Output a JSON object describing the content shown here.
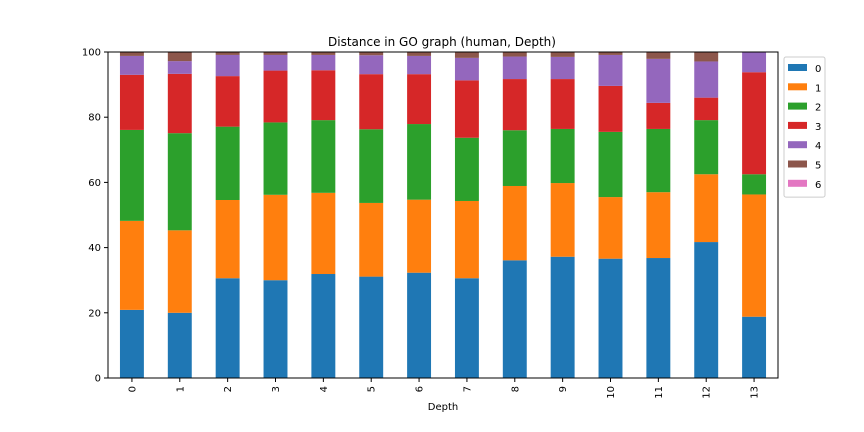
{
  "chart_data": {
    "type": "bar",
    "stacked": true,
    "title": "Distance in GO graph (human, Depth)",
    "xlabel": "Depth",
    "ylabel": "",
    "ylim": [
      0,
      100
    ],
    "yticks": [
      0,
      20,
      40,
      60,
      80,
      100
    ],
    "categories": [
      "0",
      "1",
      "2",
      "3",
      "4",
      "5",
      "6",
      "7",
      "8",
      "9",
      "10",
      "11",
      "12",
      "13"
    ],
    "legend_position": "upper-right-outside",
    "series": [
      {
        "name": "0",
        "color": "#1f77b4",
        "values": [
          20.9,
          20.0,
          30.6,
          30.0,
          31.9,
          31.1,
          32.3,
          30.6,
          36.1,
          37.2,
          36.6,
          36.8,
          41.7,
          18.8
        ]
      },
      {
        "name": "1",
        "color": "#ff7f0e",
        "values": [
          27.3,
          25.3,
          24.0,
          26.2,
          24.9,
          22.6,
          22.4,
          23.7,
          22.8,
          22.6,
          18.9,
          20.2,
          20.8,
          37.5
        ]
      },
      {
        "name": "2",
        "color": "#2ca02c",
        "values": [
          27.9,
          29.8,
          22.5,
          22.2,
          22.3,
          22.6,
          23.2,
          19.4,
          17.1,
          16.6,
          20.0,
          19.4,
          16.6,
          6.2
        ]
      },
      {
        "name": "3",
        "color": "#d62728",
        "values": [
          16.9,
          18.2,
          15.5,
          15.9,
          15.3,
          16.9,
          15.3,
          17.6,
          15.7,
          15.3,
          14.1,
          8.0,
          6.9,
          31.3
        ]
      },
      {
        "name": "4",
        "color": "#9467bd",
        "values": [
          5.8,
          3.9,
          6.5,
          4.8,
          4.7,
          5.8,
          5.6,
          6.9,
          6.9,
          6.8,
          9.5,
          13.5,
          11.1,
          6.2
        ]
      },
      {
        "name": "5",
        "color": "#8c564b",
        "values": [
          1.2,
          2.8,
          0.9,
          0.9,
          0.9,
          1.0,
          1.2,
          1.8,
          1.4,
          1.5,
          0.9,
          2.1,
          2.9,
          0.0
        ]
      },
      {
        "name": "6",
        "color": "#e377c2",
        "values": [
          0.0,
          0.0,
          0.0,
          0.0,
          0.0,
          0.0,
          0.0,
          0.0,
          0.0,
          0.0,
          0.0,
          0.0,
          0.0,
          0.0
        ]
      }
    ]
  }
}
